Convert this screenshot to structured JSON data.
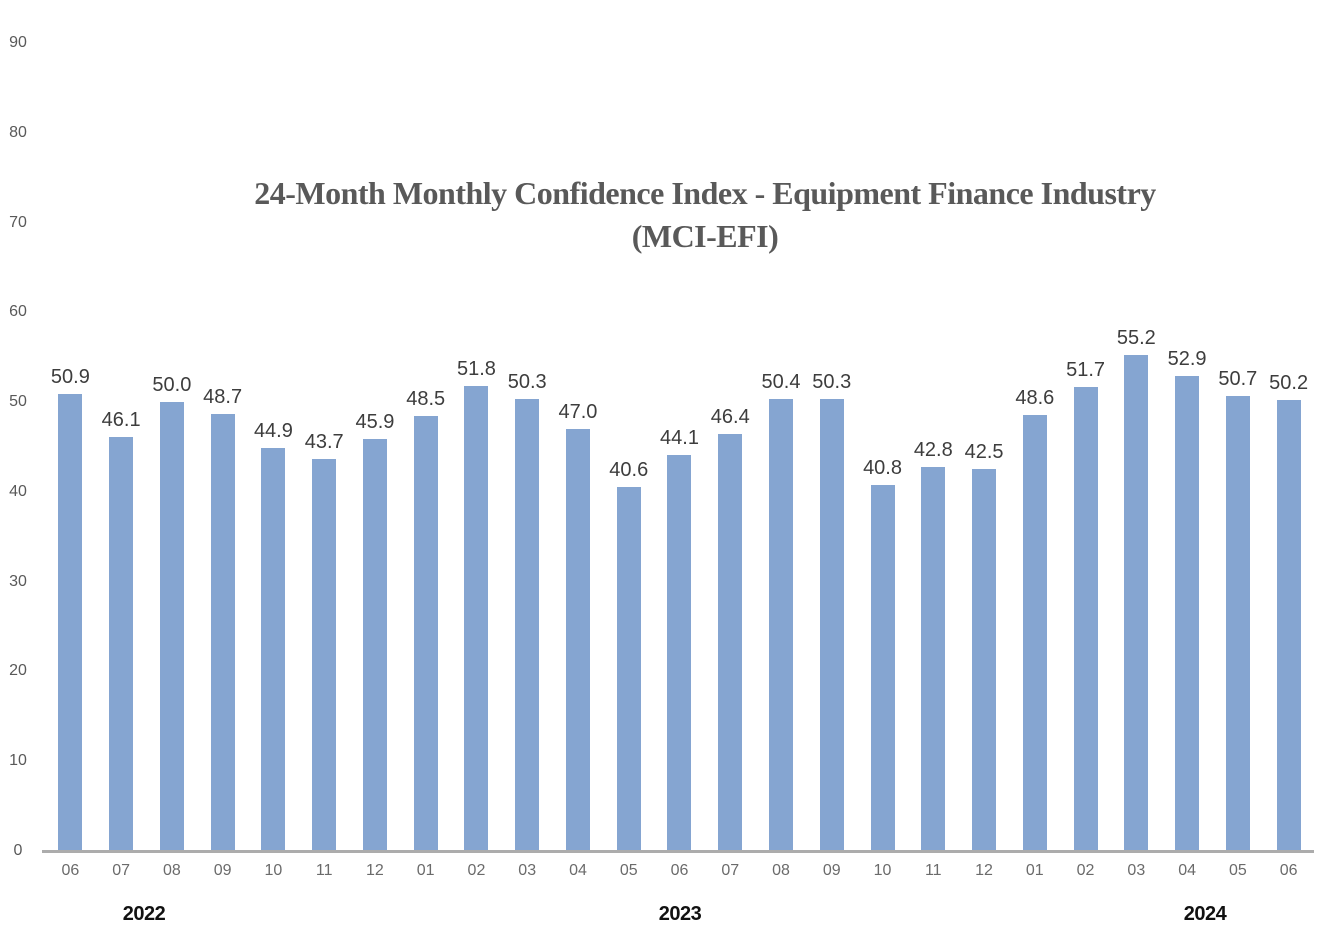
{
  "chart_data": {
    "type": "bar",
    "title": "24-Month Monthly Confidence Index - Equipment Finance Industry",
    "subtitle": "(MCI-EFI)",
    "categories": [
      "06",
      "07",
      "08",
      "09",
      "10",
      "11",
      "12",
      "01",
      "02",
      "03",
      "04",
      "05",
      "06",
      "07",
      "08",
      "09",
      "10",
      "11",
      "12",
      "01",
      "02",
      "03",
      "04",
      "05",
      "06"
    ],
    "values": [
      50.9,
      46.1,
      50.0,
      48.7,
      44.9,
      43.7,
      45.9,
      48.5,
      51.8,
      50.3,
      47.0,
      40.6,
      44.1,
      46.4,
      50.4,
      50.3,
      40.8,
      42.8,
      42.5,
      48.6,
      51.7,
      55.2,
      52.9,
      50.7,
      50.2
    ],
    "data_labels": [
      "50.9",
      "46.1",
      "50.0",
      "48.7",
      "44.9",
      "43.7",
      "45.9",
      "48.5",
      "51.8",
      "50.3",
      "47.0",
      "40.6",
      "44.1",
      "46.4",
      "50.4",
      "50.3",
      "40.8",
      "42.8",
      "42.5",
      "48.6",
      "51.7",
      "55.2",
      "52.9",
      "50.7",
      "50.2"
    ],
    "year_labels": [
      "2022",
      "2023",
      "2024"
    ],
    "yticks": [
      0,
      10,
      20,
      30,
      40,
      50,
      60,
      70,
      80,
      90
    ],
    "ylim": [
      0,
      90
    ],
    "xlabel": "",
    "ylabel": "",
    "grid": false,
    "legend": "none",
    "colors": {
      "bar": "#85a5d1",
      "axis_line": "#acacac",
      "title": "#595959",
      "data_label": "#3d3d3d",
      "tick_label": "#595959",
      "month_label": "#6b6b6b",
      "year_label": "#111111"
    }
  }
}
